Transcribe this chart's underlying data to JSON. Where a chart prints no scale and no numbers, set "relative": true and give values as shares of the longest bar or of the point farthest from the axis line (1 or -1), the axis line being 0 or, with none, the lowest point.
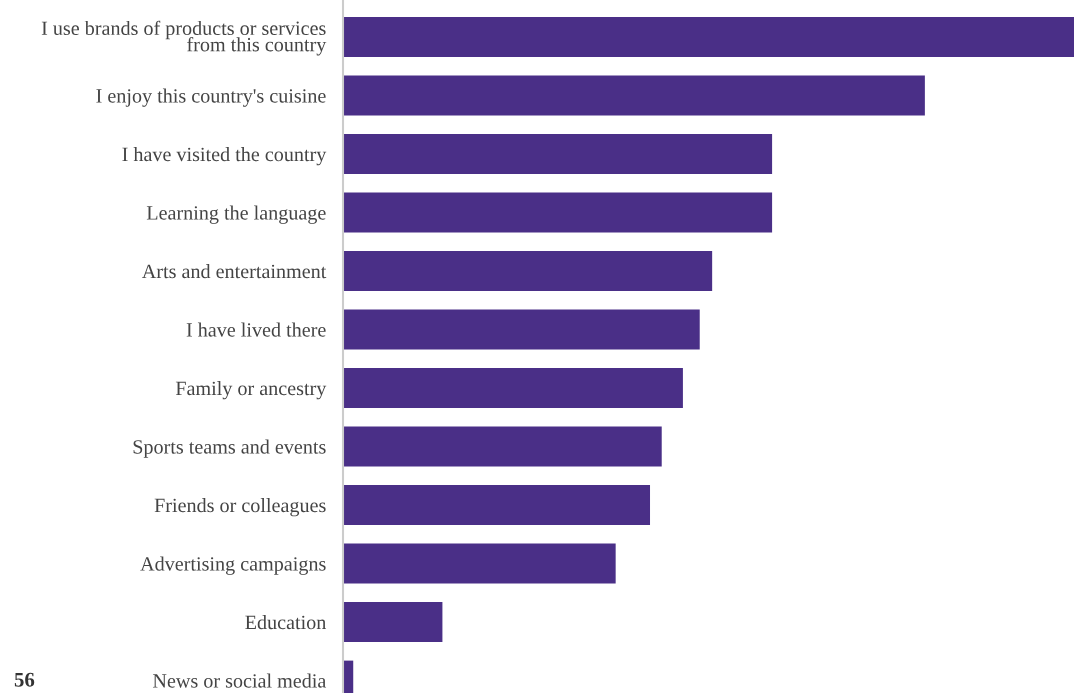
{
  "chart_data": {
    "type": "bar",
    "orientation": "horizontal",
    "relative": true,
    "categories": [
      "I use brands of products or services\nfrom this country",
      "I enjoy this country's cuisine",
      "I have visited the country",
      "Learning the language",
      "Arts and entertainment",
      "I have lived there",
      "Family or ancestry",
      "Sports teams and events",
      "Friends or colleagues",
      "Advertising campaigns",
      "Education",
      "News or social media"
    ],
    "values": [
      1,
      0.796,
      0.587,
      0.587,
      0.505,
      0.488,
      0.465,
      0.436,
      0.42,
      0.373,
      0.136,
      0.014
    ],
    "color": "#4a2f87",
    "annotations": [
      "56"
    ]
  }
}
